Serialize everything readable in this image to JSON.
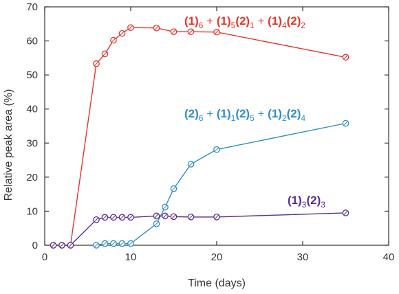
{
  "chart_data": {
    "type": "line",
    "xlabel": "Time (days)",
    "ylabel": "Relative peak area (%)",
    "xlim": [
      0,
      40
    ],
    "ylim": [
      0,
      70
    ],
    "xticks": [
      0,
      10,
      20,
      30,
      40
    ],
    "yticks": [
      0,
      10,
      20,
      30,
      40,
      50,
      60,
      70
    ],
    "grid": false,
    "legend": "none",
    "series": [
      {
        "label": "(1)6 + (1)5(2)1 + (1)4(2)2",
        "color": "#e8352b",
        "points": [
          [
            1,
            0
          ],
          [
            2,
            0
          ],
          [
            3,
            0
          ],
          [
            6,
            53.3
          ],
          [
            7,
            56.2
          ],
          [
            8,
            60.2
          ],
          [
            9,
            62.2
          ],
          [
            10,
            63.9
          ],
          [
            13,
            63.8
          ],
          [
            15,
            62.7
          ],
          [
            17,
            62.7
          ],
          [
            20,
            62.6
          ],
          [
            35,
            55.2
          ]
        ]
      },
      {
        "label": "(2)6 + (1)1(2)5 + (1)2(2)4",
        "color": "#2e8dc4",
        "points": [
          [
            6,
            0
          ],
          [
            7,
            0.5
          ],
          [
            8,
            0.5
          ],
          [
            9,
            0.5
          ],
          [
            10,
            0.5
          ],
          [
            13,
            6.3
          ],
          [
            14,
            11.2
          ],
          [
            15,
            16.6
          ],
          [
            17,
            23.8
          ],
          [
            20,
            28.1
          ],
          [
            35,
            35.8
          ]
        ]
      },
      {
        "label": "(1)3(2)3",
        "color": "#5b2d8f",
        "points": [
          [
            1,
            0
          ],
          [
            2,
            0
          ],
          [
            3,
            0
          ],
          [
            6,
            7.5
          ],
          [
            7,
            8.2
          ],
          [
            8,
            8.2
          ],
          [
            9,
            8.2
          ],
          [
            10,
            8.2
          ],
          [
            13,
            8.6
          ],
          [
            14,
            8.6
          ],
          [
            15,
            8.4
          ],
          [
            17,
            8.3
          ],
          [
            20,
            8.3
          ],
          [
            35,
            9.5
          ]
        ]
      }
    ]
  }
}
